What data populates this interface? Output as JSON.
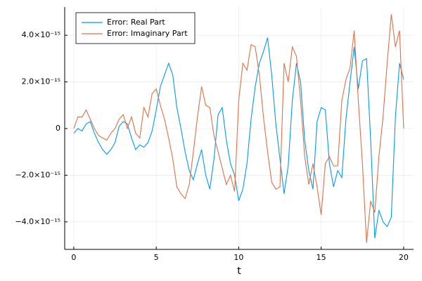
{
  "chart_data": {
    "type": "line",
    "xlabel": "t",
    "x": [
      0,
      0.25,
      0.5,
      0.75,
      1,
      1.25,
      1.5,
      1.75,
      2,
      2.25,
      2.5,
      2.75,
      3,
      3.25,
      3.5,
      3.75,
      4,
      4.25,
      4.5,
      4.75,
      5,
      5.25,
      5.5,
      5.75,
      6,
      6.25,
      6.5,
      6.75,
      7,
      7.25,
      7.5,
      7.75,
      8,
      8.25,
      8.5,
      8.75,
      9,
      9.25,
      9.5,
      9.75,
      10,
      10.25,
      10.5,
      10.75,
      11,
      11.25,
      11.5,
      11.75,
      12,
      12.25,
      12.5,
      12.75,
      13,
      13.25,
      13.5,
      13.75,
      14,
      14.25,
      14.5,
      14.75,
      15,
      15.25,
      15.5,
      15.75,
      16,
      16.25,
      16.5,
      16.75,
      17,
      17.25,
      17.5,
      17.75,
      18,
      18.25,
      18.5,
      18.75,
      19,
      19.25,
      19.5,
      19.75,
      20
    ],
    "series": [
      {
        "name": "Error: Real Part",
        "color": "#009af9",
        "values": [
          -2e-16,
          0.0,
          -1e-16,
          2e-16,
          3e-16,
          -2e-16,
          -6e-16,
          -9e-16,
          -1.1e-15,
          -9e-16,
          -6e-16,
          1e-16,
          3e-16,
          2e-16,
          -4e-16,
          -9e-16,
          -7e-16,
          -8e-16,
          -6e-16,
          -1e-16,
          8e-16,
          1.8e-15,
          2.3e-15,
          2.8e-15,
          2.3e-15,
          9e-16,
          0.0,
          -1e-15,
          -1.8e-15,
          -2.2e-15,
          -1.5e-15,
          -9e-16,
          -2e-15,
          -2.6e-15,
          -1.3e-15,
          6e-16,
          9e-16,
          -5e-16,
          -1.5e-15,
          -2e-15,
          -3.1e-15,
          -2.6e-15,
          -1.5e-15,
          4e-16,
          1.8e-15,
          2.8e-15,
          3.3e-15,
          3.9e-15,
          2.3e-15,
          2e-16,
          -1.3e-15,
          -2.8e-15,
          -1.6e-15,
          1.2e-15,
          2.8e-15,
          2e-15,
          -5e-16,
          -1.8e-15,
          -2.6e-15,
          3e-16,
          9e-16,
          8e-16,
          -1.5e-15,
          -2.5e-15,
          -1.8e-15,
          -2.1e-15,
          4e-16,
          2e-15,
          3.5e-15,
          1.7e-15,
          2.9e-15,
          3e-15,
          -5e-16,
          -4.7e-15,
          -3.5e-15,
          -4e-15,
          -4.2e-15,
          -3.8e-15,
          5e-16,
          2.8e-15,
          2.1e-15
        ]
      },
      {
        "name": "Error: Imaginary Part",
        "color": "#e26f46",
        "values": [
          0.0,
          5e-16,
          5e-16,
          8e-16,
          4e-16,
          0.0,
          -3e-16,
          -4e-16,
          -5e-16,
          -2e-16,
          0.0,
          4e-16,
          6e-16,
          0.0,
          5e-16,
          -2e-16,
          -4e-16,
          9e-16,
          5e-16,
          1.5e-15,
          1.7e-15,
          1e-15,
          4e-16,
          -4e-16,
          -1.3e-15,
          -2.5e-15,
          -2.8e-15,
          -3e-15,
          -2.4e-15,
          -1e-15,
          5e-16,
          1.8e-15,
          1e-15,
          9e-16,
          -3e-16,
          -1e-15,
          -1.7e-15,
          -2.4e-15,
          -2e-15,
          -2.7e-15,
          1.2e-15,
          2.8e-15,
          2.5e-15,
          3.6e-15,
          3.5e-15,
          2.3e-15,
          5e-16,
          -1e-15,
          -2.3e-15,
          -2.6e-15,
          -2.5e-15,
          2.8e-15,
          2e-15,
          3.5e-15,
          3.1e-15,
          1.2e-15,
          -1.2e-15,
          -2.4e-15,
          -1.5e-15,
          -2.5e-15,
          -3.7e-15,
          -1.5e-15,
          -1.2e-15,
          -1.6e-15,
          -1.6e-15,
          1.2e-15,
          2.1e-15,
          2.6e-15,
          4.2e-15,
          1.2e-15,
          -1.5e-15,
          -4.9e-15,
          -3.1e-15,
          -3.6e-15,
          -1.2e-15,
          5e-16,
          2.8e-15,
          4.9e-15,
          3.5e-15,
          4.2e-15,
          0.0
        ]
      }
    ],
    "xlim": [
      -0.55,
      20.6
    ],
    "xticks": [
      0,
      5,
      10,
      15,
      20
    ],
    "ylim": [
      -5.18e-15,
      5.21e-15
    ],
    "yticks": [
      {
        "value": -4e-15,
        "label": "−4.0×10⁻¹⁵"
      },
      {
        "value": -2e-15,
        "label": "−2.0×10⁻¹⁵"
      },
      0,
      {
        "value": 2e-15,
        "label": "2.0×10⁻¹⁵"
      },
      {
        "value": 4e-15,
        "label": "4.0×10⁻¹⁵"
      }
    ],
    "grid": true,
    "legend": "top-left"
  }
}
